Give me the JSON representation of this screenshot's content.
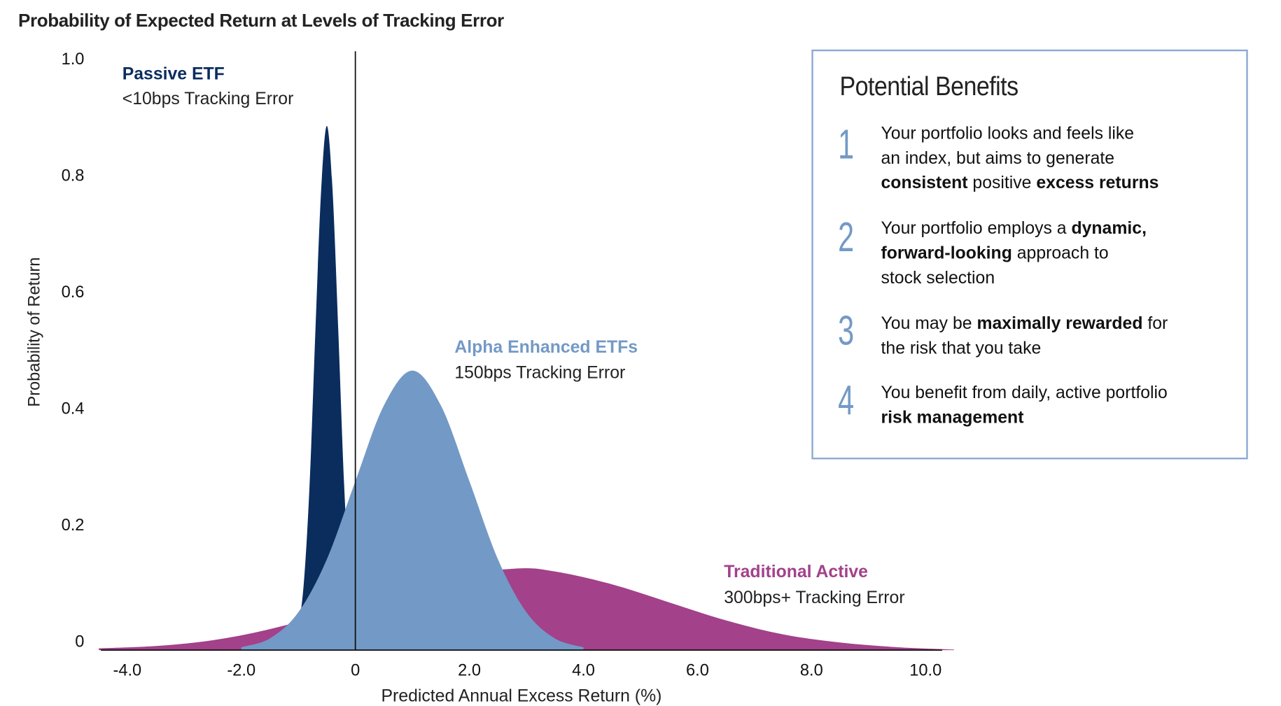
{
  "chart_data": {
    "type": "area",
    "title": "Probability of Expected Return at Levels of Tracking Error",
    "xlabel": "Predicted Annual Excess Return  (%)",
    "ylabel": "Probability of Return",
    "xlim": [
      -4.4,
      10.4
    ],
    "ylim": [
      0,
      1.0
    ],
    "x_ticks": [
      "-4.0",
      "-2.0",
      "0",
      "2.0",
      "4.0",
      "6.0",
      "8.0",
      "10.0"
    ],
    "x_tick_values": [
      -4,
      -2,
      0,
      2,
      4,
      6,
      8,
      10
    ],
    "y_ticks": [
      "0",
      "0.2",
      "0.4",
      "0.6",
      "0.8",
      "1.0"
    ],
    "y_tick_values": [
      0,
      0.2,
      0.4,
      0.6,
      0.8,
      1.0
    ],
    "grid": false,
    "reference_line_x": 0,
    "series": [
      {
        "name": "Traditional Active",
        "annotation": "300bps+ Tracking Error",
        "color": "#a3418a",
        "x": [
          -4.5,
          -3.5,
          -2.5,
          -1.5,
          -0.5,
          0.5,
          1.5,
          2.8,
          3.5,
          4.5,
          5.5,
          6.5,
          7.5,
          8.5,
          9.5,
          10.5
        ],
        "y": [
          0.003,
          0.007,
          0.017,
          0.036,
          0.063,
          0.095,
          0.124,
          0.14,
          0.135,
          0.113,
          0.082,
          0.051,
          0.027,
          0.013,
          0.005,
          0.001
        ]
      },
      {
        "name": "Passive ETF",
        "annotation": "<10bps Tracking Error",
        "color": "#0a2d5e",
        "x": [
          -1.2,
          -1.1,
          -1.0,
          -0.9,
          -0.8,
          -0.7,
          -0.6,
          -0.5,
          -0.4,
          -0.3,
          -0.2,
          -0.1,
          0.0,
          0.1,
          0.2
        ],
        "y": [
          0.002,
          0.01,
          0.04,
          0.12,
          0.29,
          0.55,
          0.79,
          0.9,
          0.79,
          0.55,
          0.29,
          0.12,
          0.04,
          0.01,
          0.002
        ]
      },
      {
        "name": "Alpha Enhanced ETFs",
        "annotation": "150bps Tracking Error",
        "color": "#7399c6",
        "x": [
          -2.0,
          -1.5,
          -1.0,
          -0.5,
          0.0,
          0.5,
          1.0,
          1.5,
          2.0,
          2.5,
          3.0,
          3.5,
          4.0
        ],
        "y": [
          0.005,
          0.02,
          0.065,
          0.156,
          0.29,
          0.42,
          0.48,
          0.42,
          0.29,
          0.156,
          0.065,
          0.02,
          0.005
        ]
      }
    ]
  },
  "benefits": {
    "title": "Potential Benefits",
    "border_color": "#8aa8d3",
    "items": [
      {
        "number": "1",
        "lines": [
          [
            {
              "t": "Your portfolio looks and feels like"
            }
          ],
          [
            {
              "t": "an index, but aims to generate"
            }
          ],
          [
            {
              "t": "consistent",
              "b": true
            },
            {
              "t": " positive "
            },
            {
              "t": "excess returns",
              "b": true
            }
          ]
        ]
      },
      {
        "number": "2",
        "lines": [
          [
            {
              "t": "Your portfolio employs a "
            },
            {
              "t": "dynamic,",
              "b": true
            }
          ],
          [
            {
              "t": "forward-looking",
              "b": true
            },
            {
              "t": " approach to"
            }
          ],
          [
            {
              "t": "stock selection"
            }
          ]
        ]
      },
      {
        "number": "3",
        "lines": [
          [
            {
              "t": "You may be "
            },
            {
              "t": "maximally rewarded",
              "b": true
            },
            {
              "t": " for"
            }
          ],
          [
            {
              "t": "the risk that you take"
            }
          ]
        ]
      },
      {
        "number": "4",
        "lines": [
          [
            {
              "t": "You benefit from daily, active portfolio"
            }
          ],
          [
            {
              "t": "risk management",
              "b": true
            }
          ]
        ]
      }
    ]
  }
}
